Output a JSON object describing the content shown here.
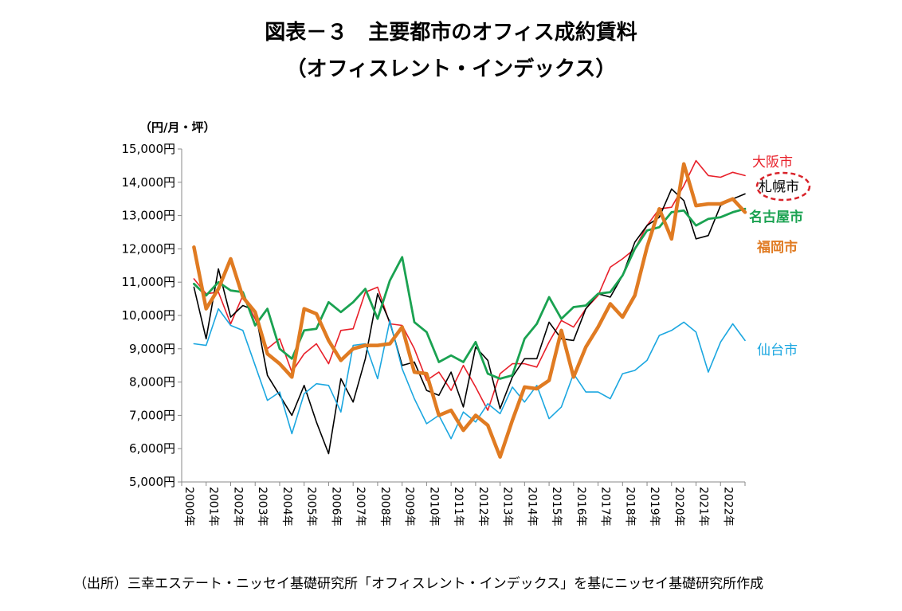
{
  "chart_data": {
    "type": "line",
    "title": "図表－３　主要都市のオフィス成約賃料",
    "subtitle": "（オフィスレント・インデックス）",
    "ylabel": "（円/月・坪）",
    "ylim": [
      5000,
      15000
    ],
    "yticks": [
      5000,
      6000,
      7000,
      8000,
      9000,
      10000,
      11000,
      12000,
      13000,
      14000,
      15000
    ],
    "ytick_labels": [
      "5,000円",
      "6,000円",
      "7,000円",
      "8,000円",
      "9,000円",
      "10,000円",
      "11,000円",
      "12,000円",
      "13,000円",
      "14,000円",
      "15,000円"
    ],
    "x_start": 2000,
    "x_end": 2023,
    "xtick_labels": [
      "2000年",
      "2001年",
      "2002年",
      "2003年",
      "2004年",
      "2005年",
      "2006年",
      "2007年",
      "2008年",
      "2009年",
      "2010年",
      "2011年",
      "2012年",
      "2013年",
      "2014年",
      "2015年",
      "2016年",
      "2017年",
      "2018年",
      "2019年",
      "2020年",
      "2021年",
      "2022年"
    ],
    "x": [
      2000.5,
      2001.0,
      2001.5,
      2002.0,
      2002.5,
      2003.0,
      2003.5,
      2004.0,
      2004.5,
      2005.0,
      2005.5,
      2006.0,
      2006.5,
      2007.0,
      2007.5,
      2008.0,
      2008.5,
      2009.0,
      2009.5,
      2010.0,
      2010.5,
      2011.0,
      2011.5,
      2012.0,
      2012.5,
      2013.0,
      2013.5,
      2014.0,
      2014.5,
      2015.0,
      2015.5,
      2016.0,
      2016.5,
      2017.0,
      2017.5,
      2018.0,
      2018.5,
      2019.0,
      2019.5,
      2020.0,
      2020.5,
      2021.0,
      2021.5,
      2022.0,
      2022.5,
      2023.0
    ],
    "series": [
      {
        "name": "大阪市",
        "color": "#e8202a",
        "width": 1.6,
        "values": [
          11100,
          10650,
          10700,
          9750,
          10600,
          9900,
          9000,
          9300,
          8300,
          8850,
          9150,
          8550,
          9550,
          9600,
          10700,
          10850,
          9750,
          9700,
          9000,
          8050,
          8300,
          7750,
          8500,
          7850,
          7150,
          8250,
          8550,
          8550,
          8450,
          9200,
          9850,
          9650,
          10200,
          10600,
          11450,
          11700,
          12000,
          12700,
          13200,
          13250,
          13900,
          14650,
          14200,
          14150,
          14300,
          14200
        ]
      },
      {
        "name": "札幌市",
        "color": "#000000",
        "width": 1.6,
        "values": [
          10850,
          9300,
          11400,
          9950,
          10300,
          10150,
          8200,
          7600,
          7000,
          7900,
          6800,
          5850,
          8100,
          7400,
          8700,
          10650,
          9800,
          8500,
          8600,
          7750,
          7600,
          8300,
          7250,
          9050,
          8650,
          7200,
          8150,
          8700,
          8700,
          9800,
          9300,
          9250,
          10200,
          10650,
          10550,
          11200,
          12200,
          12700,
          12950,
          13800,
          13450,
          12300,
          12400,
          13300,
          13500,
          13650
        ]
      },
      {
        "name": "仙台市",
        "color": "#1ca7e0",
        "width": 1.6,
        "values": [
          9150,
          9100,
          10200,
          9700,
          9550,
          8500,
          7450,
          7700,
          6450,
          7650,
          7950,
          7900,
          7100,
          9100,
          9150,
          8100,
          9850,
          8400,
          7500,
          6750,
          7000,
          6300,
          7100,
          6800,
          7350,
          7050,
          7850,
          7400,
          7900,
          6900,
          7250,
          8250,
          7700,
          7700,
          7500,
          8250,
          8350,
          8650,
          9400,
          9550,
          9800,
          9500,
          8300,
          9200,
          9750,
          9250
        ]
      },
      {
        "name": "名古屋市",
        "color": "#1aa251",
        "width": 2.8,
        "values": [
          10950,
          10600,
          11000,
          10750,
          10700,
          9700,
          10200,
          9000,
          8700,
          9550,
          9600,
          10400,
          10100,
          10400,
          10800,
          9900,
          11050,
          11750,
          9800,
          9500,
          8600,
          8800,
          8600,
          9200,
          8250,
          8100,
          8200,
          9300,
          9750,
          10550,
          9900,
          10250,
          10300,
          10650,
          10700,
          11200,
          12000,
          12550,
          12650,
          13100,
          13150,
          12700,
          12900,
          12950,
          13100,
          13200
        ]
      },
      {
        "name": "福岡市",
        "color": "#e07b22",
        "width": 4.5,
        "values": [
          12050,
          10200,
          10800,
          11700,
          10550,
          10100,
          8850,
          8550,
          8150,
          10200,
          10050,
          9250,
          8650,
          9000,
          9100,
          9100,
          9150,
          9650,
          8300,
          8250,
          7000,
          7150,
          6550,
          7000,
          6700,
          5750,
          6850,
          7850,
          7800,
          8050,
          9550,
          8150,
          9050,
          9650,
          10350,
          9950,
          10600,
          12050,
          13200,
          12300,
          14550,
          13300,
          13350,
          13350,
          13500,
          13100
        ]
      }
    ],
    "legend_labels": [
      "大阪市",
      "札幌市",
      "名古屋市",
      "福岡市",
      "仙台市"
    ],
    "annotations": [
      "札幌市 circled with dashed red ellipse"
    ]
  },
  "source_note": "（出所）三幸エステート・ニッセイ基礎研究所「オフィスレント・インデックス」を基にニッセイ基礎研究所作成"
}
